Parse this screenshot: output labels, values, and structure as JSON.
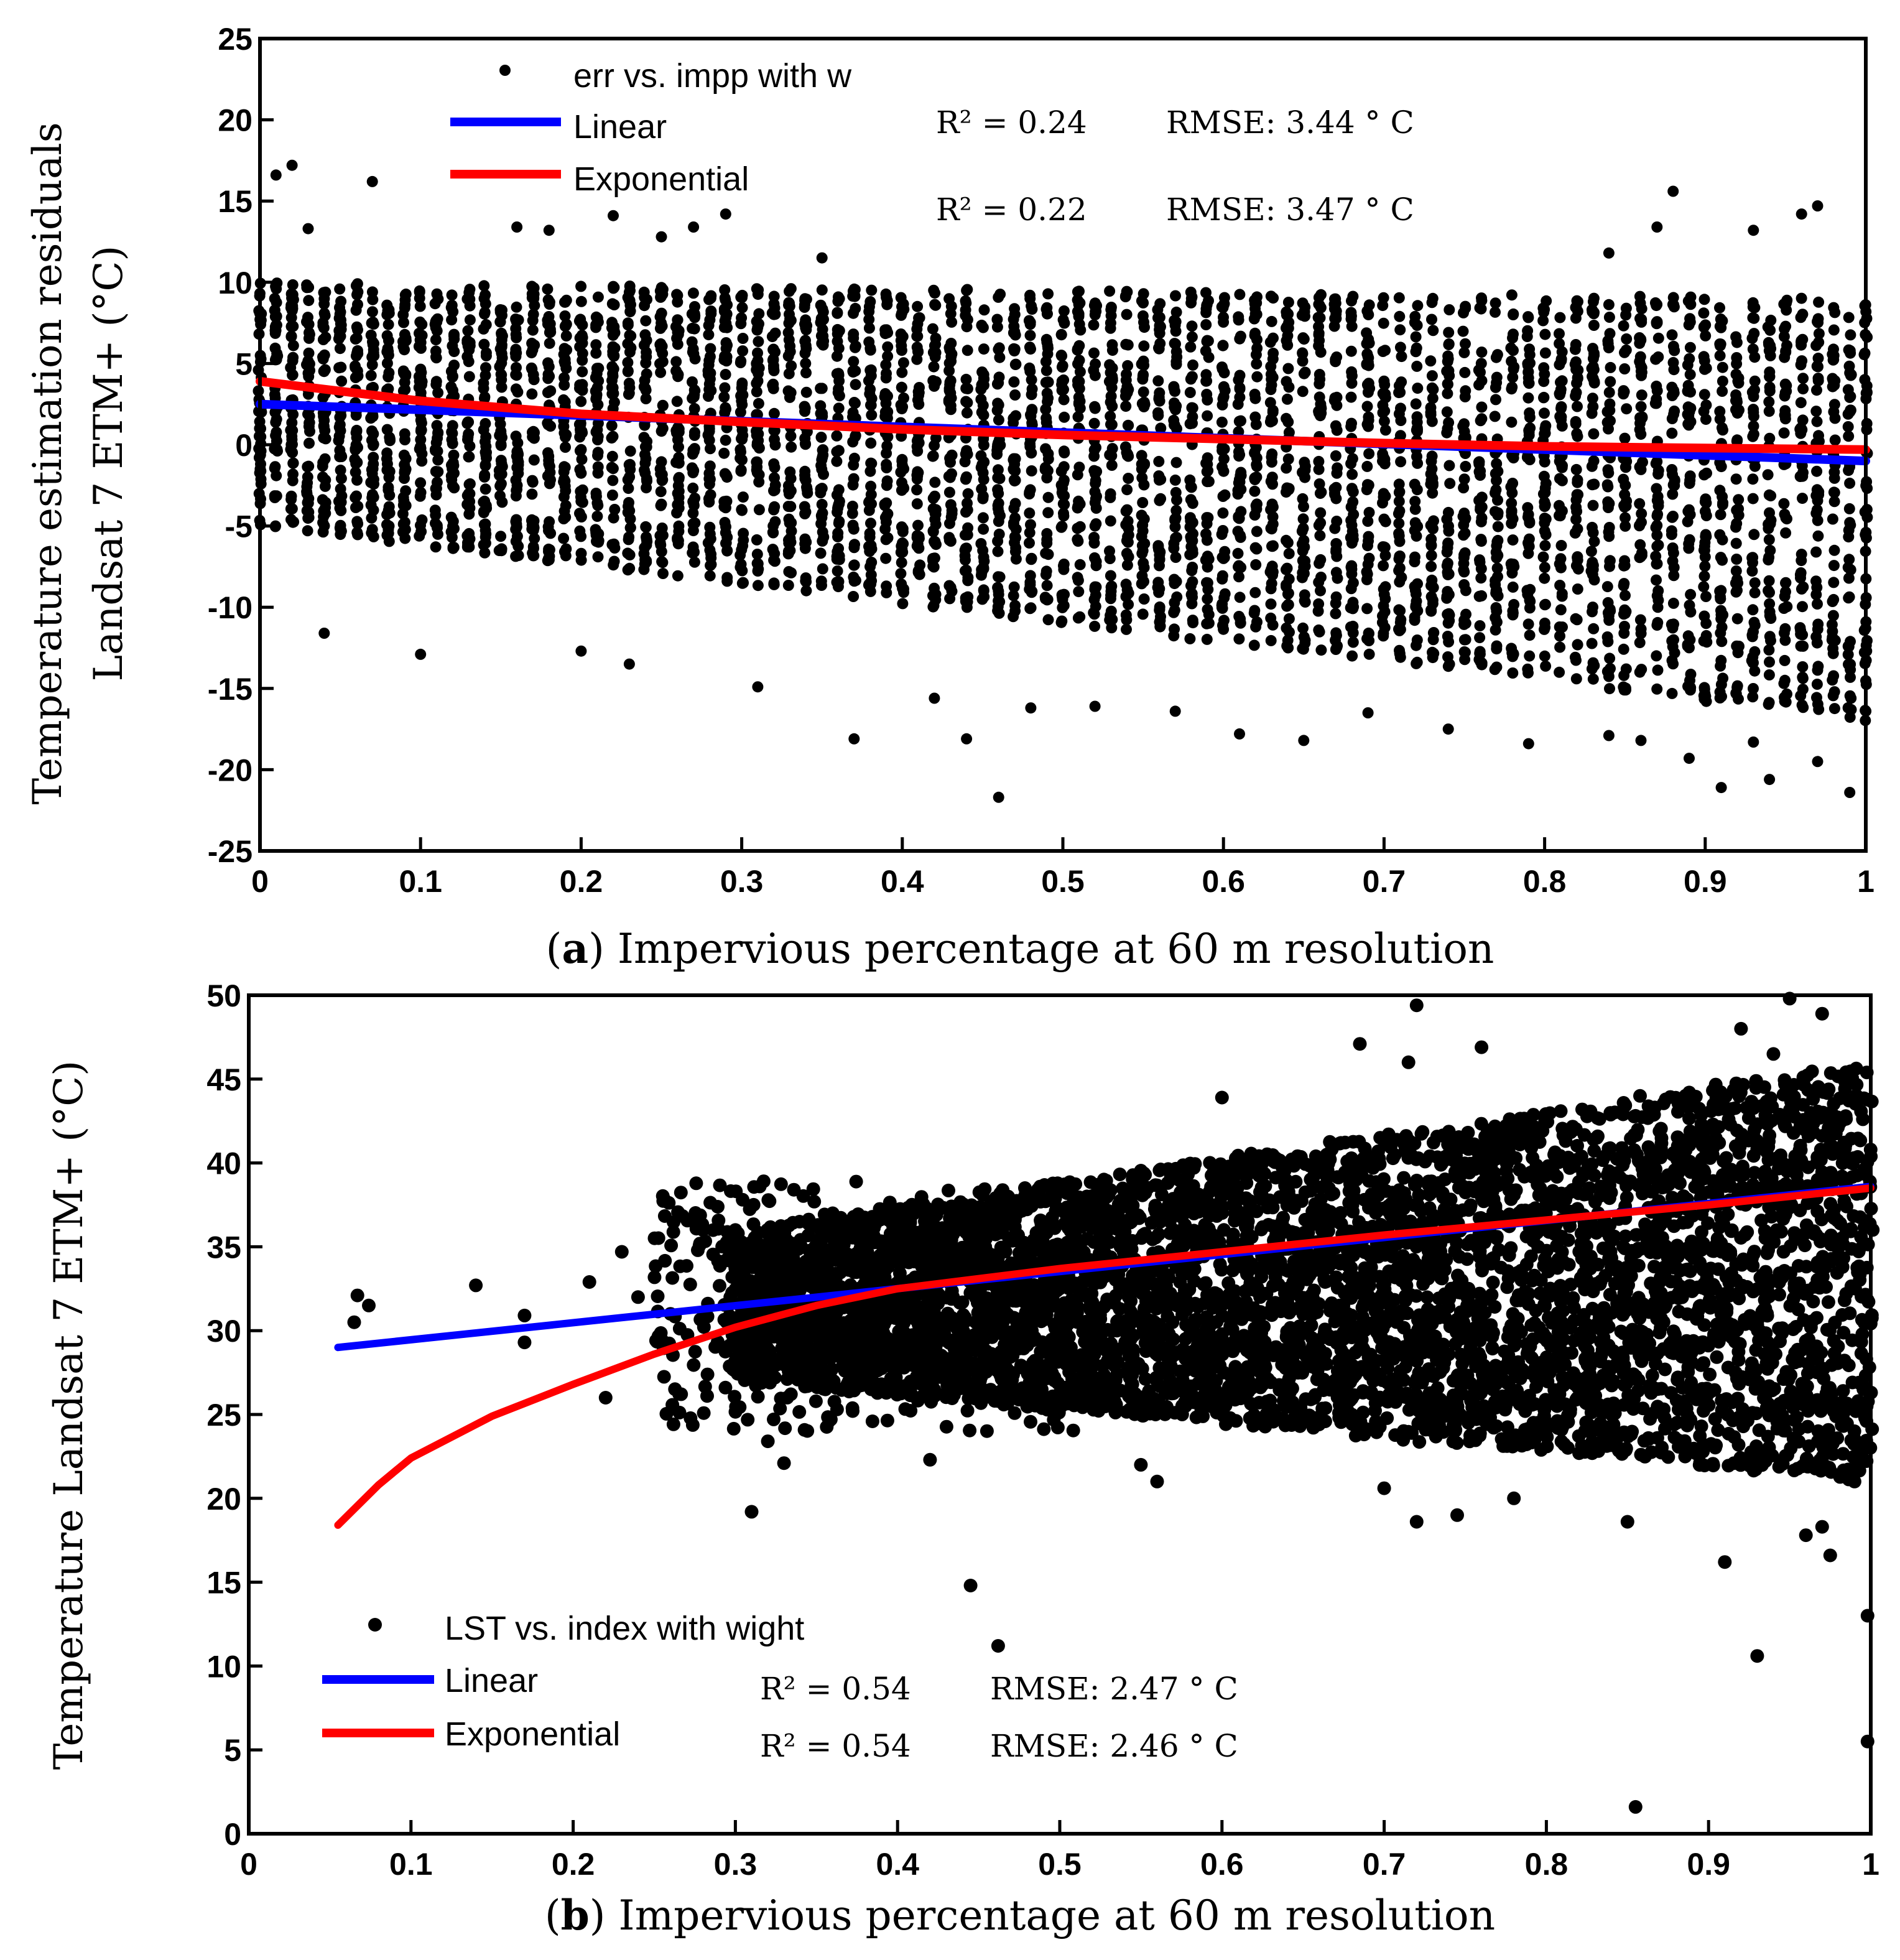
{
  "chart_data": [
    {
      "type": "scatter",
      "panel_label": "a",
      "caption_text": "Impervious percentage at 60 m resolution",
      "ylabel_line1": "Temperature estimation residuals",
      "ylabel_line2": "Landsat 7 ETM+ (°C)",
      "xlim": [
        0,
        1
      ],
      "ylim": [
        -25,
        25
      ],
      "xticks": [
        0,
        0.1,
        0.2,
        0.3,
        0.4,
        0.5,
        0.6,
        0.7,
        0.8,
        0.9,
        1
      ],
      "yticks": [
        -25,
        -20,
        -15,
        -10,
        -5,
        0,
        5,
        10,
        15,
        20,
        25
      ],
      "legend": {
        "points": "err vs. impp with w",
        "linear": "Linear",
        "exponential": "Exponential"
      },
      "stats": {
        "linear_r2": "R² = 0.24",
        "linear_rmse": "RMSE: 3.44 ° C",
        "exp_r2": "R² = 0.22",
        "exp_rmse": "RMSE: 3.47 ° C"
      },
      "series": [
        {
          "name": "Linear",
          "color": "#0000ff",
          "x": [
            0,
            1
          ],
          "y": [
            2.5,
            -1.0
          ]
        },
        {
          "name": "Exponential",
          "color": "#ff0000",
          "x": [
            0,
            0.1,
            0.2,
            0.3,
            0.4,
            0.5,
            0.6,
            0.7,
            0.8,
            0.9,
            1
          ],
          "y": [
            3.9,
            2.7,
            1.9,
            1.4,
            0.95,
            0.6,
            0.35,
            0.1,
            -0.1,
            -0.2,
            -0.3
          ]
        }
      ],
      "band": {
        "x_start": 0,
        "x_end": 1,
        "step": 0.01,
        "upper_start": 10,
        "upper_end": 9,
        "lower_start": -5,
        "lower_end": -17
      },
      "outliers": [
        [
          0.02,
          17.2
        ],
        [
          0.01,
          16.6
        ],
        [
          0.07,
          16.2
        ],
        [
          0.03,
          13.3
        ],
        [
          0.16,
          13.4
        ],
        [
          0.18,
          13.2
        ],
        [
          0.27,
          13.4
        ],
        [
          0.25,
          12.8
        ],
        [
          0.29,
          14.2
        ],
        [
          0.35,
          11.5
        ],
        [
          0.22,
          14.1
        ],
        [
          0.87,
          13.4
        ],
        [
          0.93,
          13.2
        ],
        [
          0.97,
          14.7
        ],
        [
          0.96,
          14.2
        ],
        [
          0.84,
          11.8
        ],
        [
          0.88,
          15.6
        ],
        [
          0.46,
          -21.7
        ],
        [
          0.91,
          -21.1
        ],
        [
          0.94,
          -20.6
        ],
        [
          0.99,
          -21.4
        ],
        [
          0.97,
          -19.5
        ],
        [
          0.89,
          -19.3
        ],
        [
          0.37,
          -18.1
        ],
        [
          0.44,
          -18.1
        ],
        [
          0.61,
          -17.8
        ],
        [
          0.79,
          -18.4
        ],
        [
          0.74,
          -17.5
        ],
        [
          0.65,
          -18.2
        ],
        [
          0.1,
          -12.9
        ],
        [
          0.2,
          -12.7
        ],
        [
          0.04,
          -11.6
        ],
        [
          0.23,
          -13.5
        ],
        [
          0.31,
          -14.9
        ],
        [
          0.42,
          -15.6
        ],
        [
          0.52,
          -16.1
        ],
        [
          0.48,
          -16.2
        ],
        [
          0.57,
          -16.4
        ],
        [
          0.69,
          -16.5
        ],
        [
          0.84,
          -17.9
        ],
        [
          0.86,
          -18.2
        ],
        [
          0.93,
          -18.3
        ]
      ]
    },
    {
      "type": "scatter",
      "panel_label": "b",
      "caption_text": "Impervious percentage at 60 m resolution",
      "ylabel": "Temperature Landsat 7 ETM+ (°C)",
      "xlim": [
        0,
        1
      ],
      "ylim": [
        0,
        50
      ],
      "xticks": [
        0,
        0.1,
        0.2,
        0.3,
        0.4,
        0.5,
        0.6,
        0.7,
        0.8,
        0.9,
        1
      ],
      "yticks": [
        0,
        5,
        10,
        15,
        20,
        25,
        30,
        35,
        40,
        45,
        50
      ],
      "legend": {
        "points": "LST vs. index with wight",
        "linear": "Linear",
        "exponential": "Exponential"
      },
      "stats": {
        "linear_r2": "R² = 0.54",
        "linear_rmse": "RMSE: 2.47 ° C",
        "exp_r2": "R² = 0.54",
        "exp_rmse": "RMSE: 2.46 ° C"
      },
      "series": [
        {
          "name": "Linear",
          "color": "#0000ff",
          "x": [
            0.055,
            1
          ],
          "y": [
            29.0,
            38.6
          ]
        },
        {
          "name": "Exponential",
          "color": "#ff0000",
          "x": [
            0.055,
            0.08,
            0.1,
            0.15,
            0.2,
            0.25,
            0.3,
            0.35,
            0.4,
            0.5,
            0.6,
            0.7,
            0.8,
            0.9,
            1
          ],
          "y": [
            18.4,
            20.8,
            22.4,
            24.9,
            26.8,
            28.6,
            30.2,
            31.5,
            32.5,
            33.7,
            34.7,
            35.7,
            36.6,
            37.5,
            38.5
          ]
        }
      ],
      "band": {
        "x_start": 0.3,
        "x_end": 1,
        "step": 0.008,
        "upper_start": 36,
        "upper_end": 46,
        "lower_start": 27,
        "lower_end": 21
      },
      "outliers": [
        [
          0.067,
          32.1
        ],
        [
          0.074,
          31.5
        ],
        [
          0.065,
          30.5
        ],
        [
          0.14,
          32.7
        ],
        [
          0.17,
          30.9
        ],
        [
          0.17,
          29.3
        ],
        [
          0.21,
          32.9
        ],
        [
          0.23,
          34.7
        ],
        [
          0.22,
          26.0
        ],
        [
          0.24,
          32.0
        ],
        [
          0.26,
          31.0
        ],
        [
          0.28,
          36.0
        ],
        [
          0.31,
          19.2
        ],
        [
          0.33,
          22.1
        ],
        [
          0.32,
          23.4
        ],
        [
          0.3,
          36.0
        ],
        [
          0.36,
          37.0
        ],
        [
          0.42,
          22.3
        ],
        [
          0.445,
          14.8
        ],
        [
          0.462,
          11.2
        ],
        [
          0.55,
          22.0
        ],
        [
          0.56,
          21.0
        ],
        [
          0.6,
          43.9
        ],
        [
          0.685,
          47.1
        ],
        [
          0.72,
          49.4
        ],
        [
          0.715,
          46.0
        ],
        [
          0.7,
          20.6
        ],
        [
          0.72,
          18.6
        ],
        [
          0.745,
          19.0
        ],
        [
          0.76,
          46.9
        ],
        [
          0.78,
          20.0
        ],
        [
          0.85,
          18.6
        ],
        [
          0.855,
          1.6
        ],
        [
          0.91,
          16.2
        ],
        [
          0.93,
          10.6
        ],
        [
          0.95,
          49.8
        ],
        [
          0.975,
          16.6
        ],
        [
          0.97,
          18.3
        ],
        [
          0.96,
          17.8
        ],
        [
          0.998,
          13.0
        ],
        [
          0.998,
          5.5
        ],
        [
          0.99,
          21.0
        ],
        [
          0.92,
          48.0
        ],
        [
          0.94,
          46.5
        ],
        [
          0.97,
          48.9
        ]
      ]
    }
  ]
}
